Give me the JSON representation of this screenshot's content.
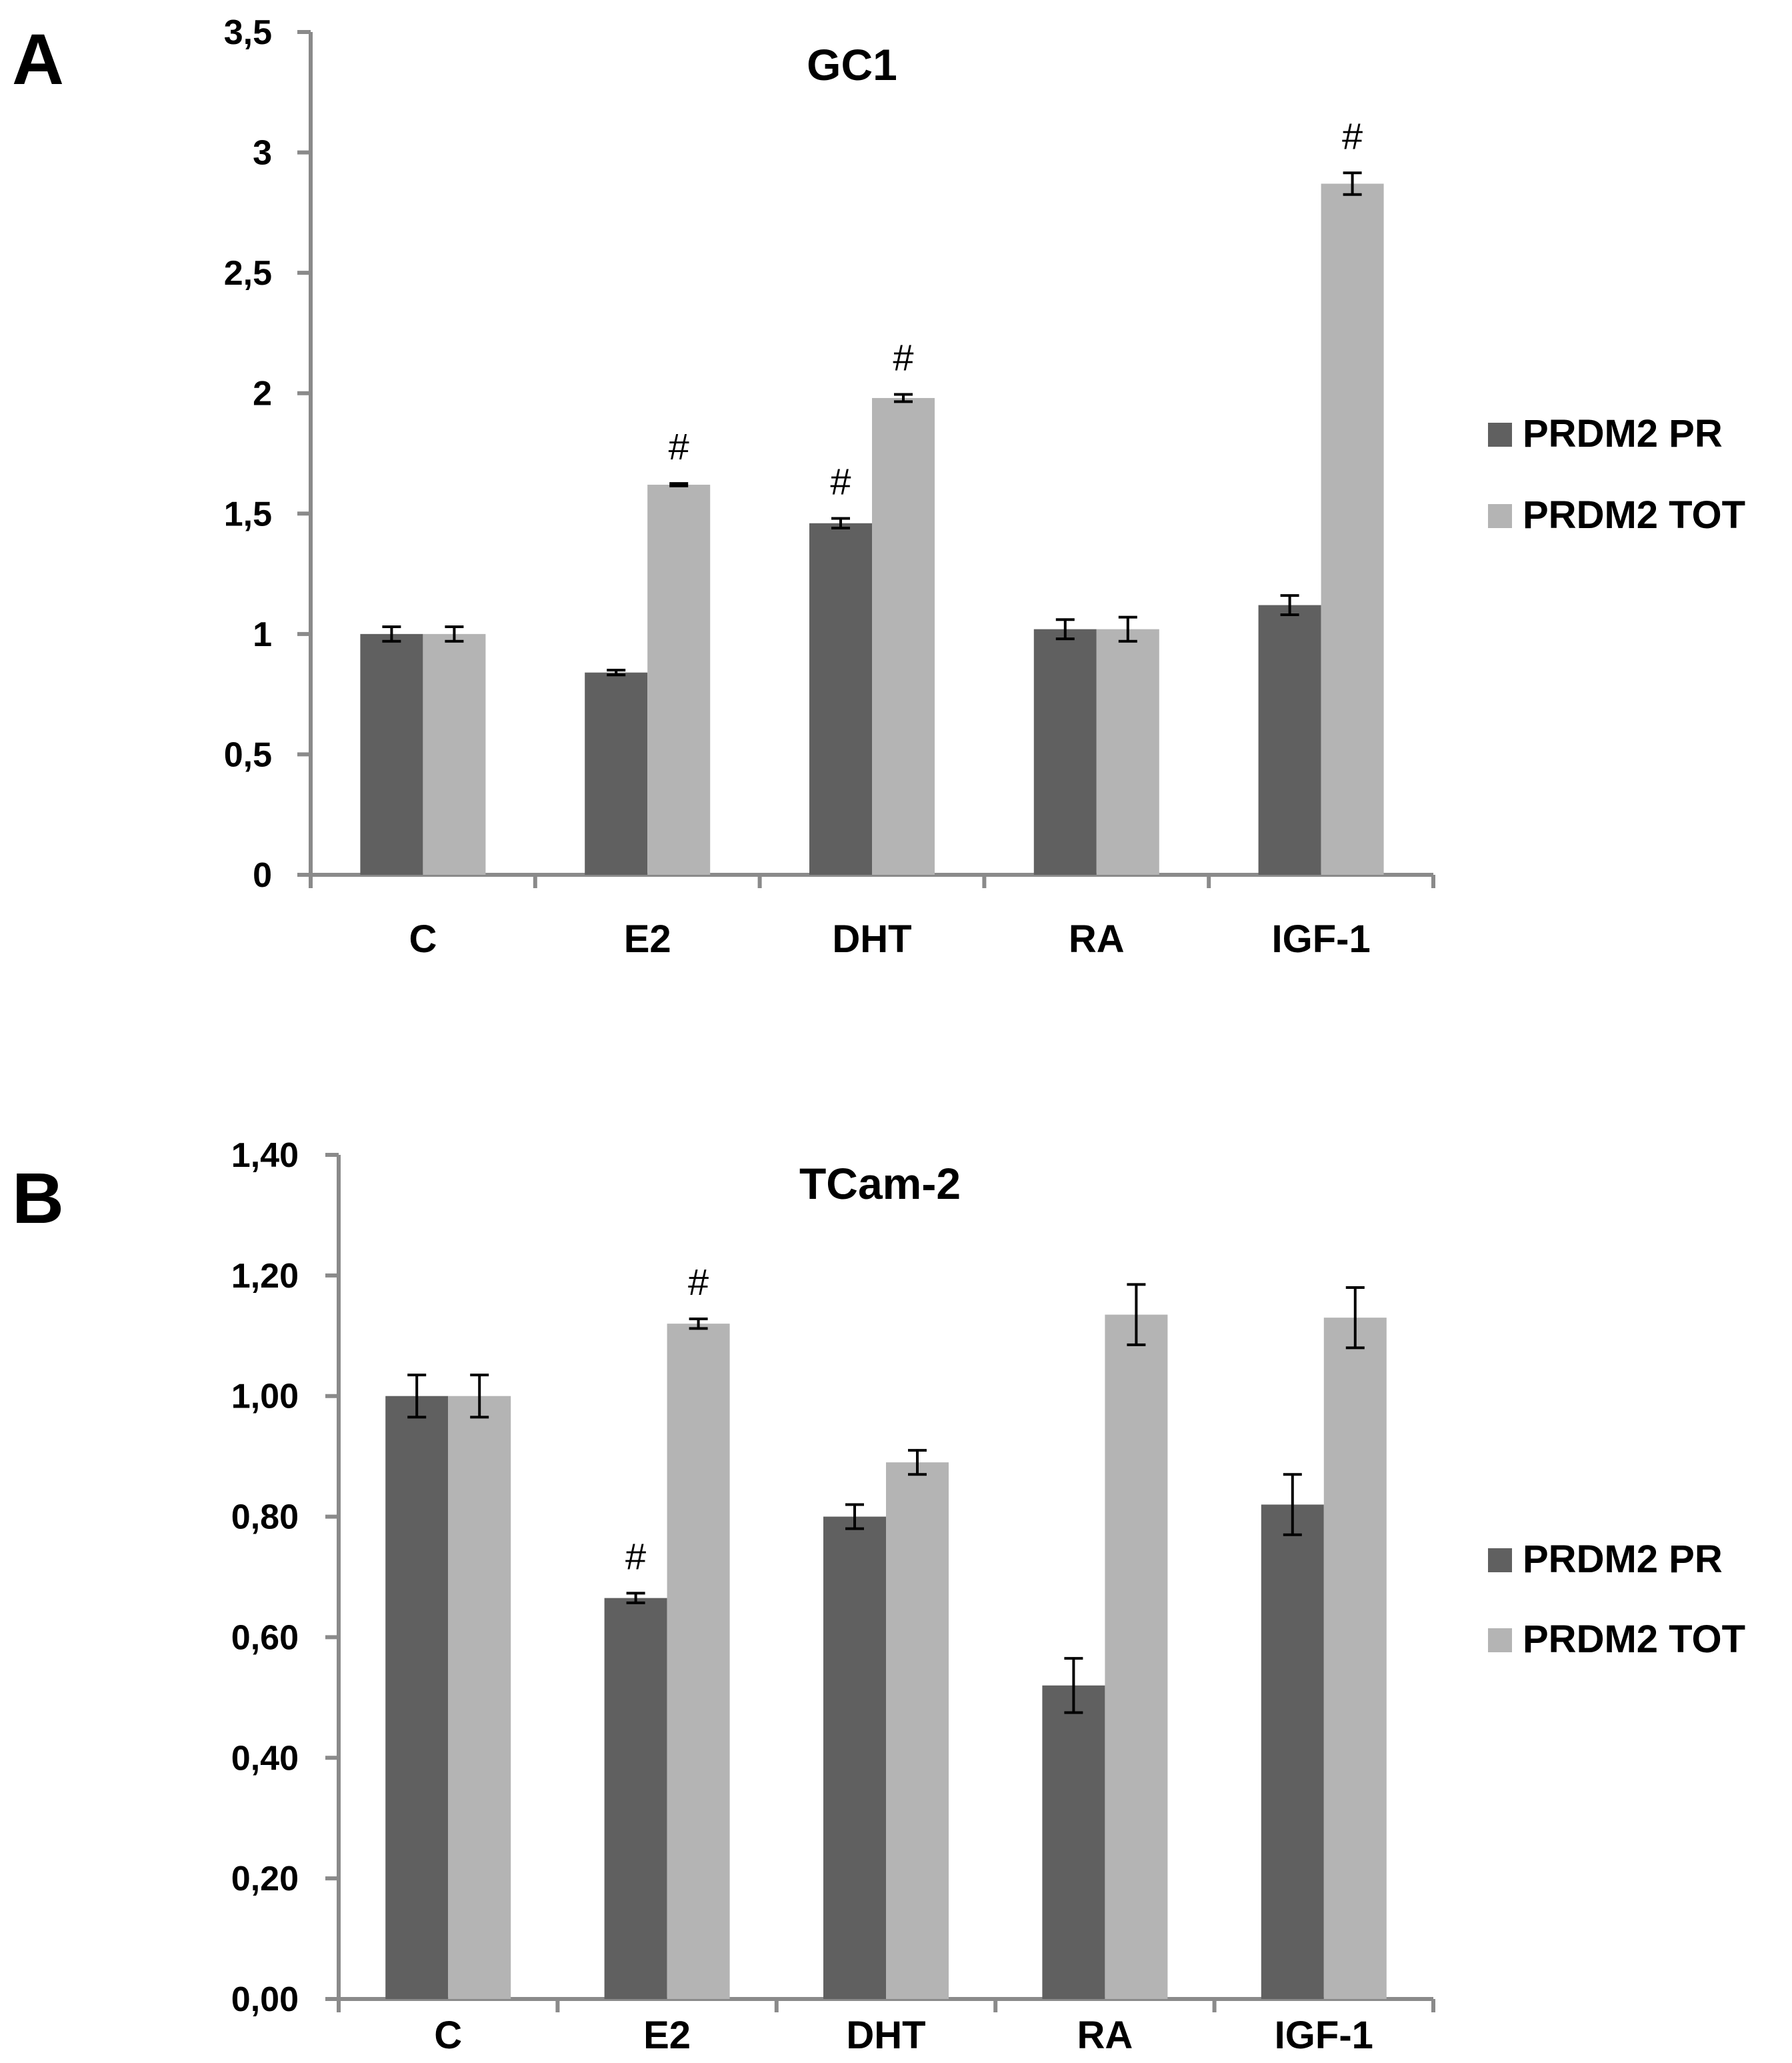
{
  "chart_data": [
    {
      "type": "bar",
      "panel_label": "A",
      "title": "GC1",
      "categories": [
        "C",
        "E2",
        "DHT",
        "RA",
        "IGF-1"
      ],
      "ylim": [
        0,
        3.5
      ],
      "yticks": [
        0,
        0.5,
        1,
        1.5,
        2,
        2.5,
        3,
        3.5
      ],
      "ytick_labels": [
        "0",
        "0,5",
        "1",
        "1,5",
        "2",
        "2,5",
        "3",
        "3,5"
      ],
      "xlabel": "",
      "ylabel": "",
      "grid": false,
      "legend_position": "right",
      "series": [
        {
          "name": "PRDM2 PR",
          "color": "#606060",
          "values": [
            1.0,
            0.84,
            1.46,
            1.02,
            1.12
          ],
          "errors": [
            0.03,
            0.01,
            0.02,
            0.04,
            0.04
          ]
        },
        {
          "name": "PRDM2 TOT",
          "color": "#b4b4b4",
          "values": [
            1.0,
            1.62,
            1.98,
            1.02,
            2.87
          ],
          "errors": [
            0.03,
            0.005,
            0.015,
            0.05,
            0.045
          ]
        }
      ],
      "significance": [
        {
          "series": 1,
          "category": 1,
          "mark": "#"
        },
        {
          "series": 0,
          "category": 2,
          "mark": "#"
        },
        {
          "series": 1,
          "category": 2,
          "mark": "#"
        },
        {
          "series": 1,
          "category": 4,
          "mark": "#"
        }
      ]
    },
    {
      "type": "bar",
      "panel_label": "B",
      "title": "TCam-2",
      "categories": [
        "C",
        "E2",
        "DHT",
        "RA",
        "IGF-1"
      ],
      "ylim": [
        0,
        1.4
      ],
      "yticks": [
        0,
        0.2,
        0.4,
        0.6,
        0.8,
        1.0,
        1.2,
        1.4
      ],
      "ytick_labels": [
        "0,00",
        "0,20",
        "0,40",
        "0,60",
        "0,80",
        "1,00",
        "1,20",
        "1,40"
      ],
      "xlabel": "",
      "ylabel": "",
      "grid": false,
      "legend_position": "right",
      "series": [
        {
          "name": "PRDM2 PR",
          "color": "#606060",
          "values": [
            1.0,
            0.665,
            0.8,
            0.52,
            0.82
          ],
          "errors": [
            0.035,
            0.008,
            0.02,
            0.045,
            0.05
          ]
        },
        {
          "name": "PRDM2 TOT",
          "color": "#b4b4b4",
          "values": [
            1.0,
            1.12,
            0.89,
            1.135,
            1.13
          ],
          "errors": [
            0.035,
            0.008,
            0.02,
            0.05,
            0.05
          ]
        }
      ],
      "significance": [
        {
          "series": 0,
          "category": 1,
          "mark": "#"
        },
        {
          "series": 1,
          "category": 1,
          "mark": "#"
        }
      ]
    }
  ]
}
